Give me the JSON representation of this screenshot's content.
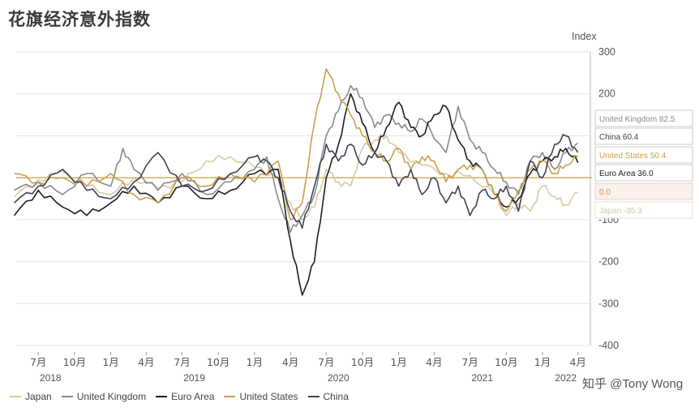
{
  "title": "花旗经济意外指数",
  "watermark": "知乎 @Tony Wong",
  "chart_data": {
    "type": "line",
    "title": "花旗经济意外指数",
    "ylabel": "Index",
    "ylim": [
      -400,
      300
    ],
    "yticks": [
      300,
      200,
      100,
      0,
      -100,
      -200,
      -300,
      -400
    ],
    "grid": true,
    "legend_position": "bottom-left",
    "x_labels": [
      "7月",
      "10月",
      "1月",
      "4月",
      "7月",
      "10月",
      "1月",
      "4月",
      "7月",
      "10月",
      "1月",
      "4月",
      "7月",
      "10月",
      "1月",
      "4月"
    ],
    "x_label_dates": [
      "2018-07",
      "2018-10",
      "2019-01",
      "2019-04",
      "2019-07",
      "2019-10",
      "2020-01",
      "2020-04",
      "2020-07",
      "2020-10",
      "2021-01",
      "2021-04",
      "2021-07",
      "2021-10",
      "2022-01",
      "2022-04"
    ],
    "year_labels": [
      {
        "date": "2018-08",
        "label": "2018"
      },
      {
        "date": "2019-08",
        "label": "2019"
      },
      {
        "date": "2020-08",
        "label": "2020"
      },
      {
        "date": "2021-08",
        "label": "2021"
      },
      {
        "date": "2022-03",
        "label": "2022"
      }
    ],
    "x_range": [
      "2018-05-20",
      "2022-04-30"
    ],
    "series": [
      {
        "name": "Japan",
        "color": "#d8c9a8",
        "end_value": -35.3,
        "end_label": "Japan -35.3",
        "points": [
          [
            "2018-05",
            -45
          ],
          [
            "2018-07",
            -5
          ],
          [
            "2018-09",
            15
          ],
          [
            "2018-11",
            -20
          ],
          [
            "2019-01",
            -40
          ],
          [
            "2019-03",
            0
          ],
          [
            "2019-05",
            -25
          ],
          [
            "2019-07",
            -10
          ],
          [
            "2019-09",
            40
          ],
          [
            "2019-11",
            50
          ],
          [
            "2020-01",
            25
          ],
          [
            "2020-03",
            0
          ],
          [
            "2020-04",
            -60
          ],
          [
            "2020-05",
            -100
          ],
          [
            "2020-06",
            -70
          ],
          [
            "2020-07",
            20
          ],
          [
            "2020-08",
            -10
          ],
          [
            "2020-09",
            -20
          ],
          [
            "2020-10",
            70
          ],
          [
            "2020-11",
            90
          ],
          [
            "2020-12",
            100
          ],
          [
            "2021-01",
            60
          ],
          [
            "2021-03",
            30
          ],
          [
            "2021-05",
            10
          ],
          [
            "2021-07",
            5
          ],
          [
            "2021-09",
            -40
          ],
          [
            "2021-10",
            -90
          ],
          [
            "2021-11",
            -60
          ],
          [
            "2021-12",
            -80
          ],
          [
            "2022-01",
            -20
          ],
          [
            "2022-02",
            -45
          ],
          [
            "2022-03",
            -65
          ],
          [
            "2022-04",
            -35.3
          ]
        ]
      },
      {
        "name": "United Kingdom",
        "color": "#8a8a8a",
        "end_value": 82.5,
        "end_label": "United Kingdom 82.5",
        "points": [
          [
            "2018-05",
            -30
          ],
          [
            "2018-07",
            -10
          ],
          [
            "2018-09",
            -40
          ],
          [
            "2018-11",
            10
          ],
          [
            "2019-01",
            -20
          ],
          [
            "2019-02",
            70
          ],
          [
            "2019-03",
            20
          ],
          [
            "2019-05",
            -30
          ],
          [
            "2019-07",
            10
          ],
          [
            "2019-09",
            -40
          ],
          [
            "2019-11",
            -10
          ],
          [
            "2020-01",
            20
          ],
          [
            "2020-02",
            50
          ],
          [
            "2020-03",
            -50
          ],
          [
            "2020-04",
            -130
          ],
          [
            "2020-05",
            -90
          ],
          [
            "2020-06",
            -40
          ],
          [
            "2020-07",
            100
          ],
          [
            "2020-08",
            160
          ],
          [
            "2020-09",
            220
          ],
          [
            "2020-10",
            190
          ],
          [
            "2020-11",
            120
          ],
          [
            "2020-12",
            150
          ],
          [
            "2021-01",
            130
          ],
          [
            "2021-02",
            110
          ],
          [
            "2021-03",
            140
          ],
          [
            "2021-05",
            60
          ],
          [
            "2021-06",
            170
          ],
          [
            "2021-07",
            90
          ],
          [
            "2021-08",
            60
          ],
          [
            "2021-09",
            20
          ],
          [
            "2021-10",
            -10
          ],
          [
            "2021-11",
            -40
          ],
          [
            "2021-12",
            40
          ],
          [
            "2022-01",
            60
          ],
          [
            "2022-02",
            20
          ],
          [
            "2022-03",
            60
          ],
          [
            "2022-04",
            82.5
          ]
        ]
      },
      {
        "name": "Euro Area",
        "color": "#1e1e1e",
        "end_value": 36.0,
        "end_label": "Euro Area 36.0",
        "points": [
          [
            "2018-05",
            -90
          ],
          [
            "2018-07",
            -30
          ],
          [
            "2018-09",
            -70
          ],
          [
            "2018-11",
            -90
          ],
          [
            "2019-01",
            -60
          ],
          [
            "2019-03",
            -20
          ],
          [
            "2019-05",
            -60
          ],
          [
            "2019-07",
            -20
          ],
          [
            "2019-09",
            -50
          ],
          [
            "2019-11",
            -30
          ],
          [
            "2020-01",
            10
          ],
          [
            "2020-03",
            20
          ],
          [
            "2020-04",
            -150
          ],
          [
            "2020-05",
            -280
          ],
          [
            "2020-06",
            -200
          ],
          [
            "2020-07",
            0
          ],
          [
            "2020-08",
            80
          ],
          [
            "2020-09",
            200
          ],
          [
            "2020-10",
            130
          ],
          [
            "2020-11",
            60
          ],
          [
            "2020-12",
            120
          ],
          [
            "2021-01",
            180
          ],
          [
            "2021-02",
            120
          ],
          [
            "2021-03",
            100
          ],
          [
            "2021-04",
            150
          ],
          [
            "2021-05",
            170
          ],
          [
            "2021-06",
            90
          ],
          [
            "2021-07",
            40
          ],
          [
            "2021-08",
            20
          ],
          [
            "2021-09",
            -40
          ],
          [
            "2021-10",
            -70
          ],
          [
            "2021-11",
            -50
          ],
          [
            "2021-12",
            10
          ],
          [
            "2022-01",
            40
          ],
          [
            "2022-02",
            50
          ],
          [
            "2022-03",
            70
          ],
          [
            "2022-04",
            36.0
          ]
        ]
      },
      {
        "name": "United States",
        "color": "#c9a04e",
        "end_value": 50.4,
        "end_label": "United States 50.4",
        "points": [
          [
            "2018-05",
            10
          ],
          [
            "2018-07",
            -10
          ],
          [
            "2018-09",
            0
          ],
          [
            "2018-11",
            -20
          ],
          [
            "2019-01",
            10
          ],
          [
            "2019-03",
            -40
          ],
          [
            "2019-05",
            -60
          ],
          [
            "2019-07",
            0
          ],
          [
            "2019-09",
            -20
          ],
          [
            "2019-11",
            10
          ],
          [
            "2020-01",
            -10
          ],
          [
            "2020-03",
            40
          ],
          [
            "2020-04",
            -100
          ],
          [
            "2020-05",
            -60
          ],
          [
            "2020-06",
            130
          ],
          [
            "2020-07",
            260
          ],
          [
            "2020-08",
            200
          ],
          [
            "2020-09",
            150
          ],
          [
            "2020-10",
            100
          ],
          [
            "2020-11",
            60
          ],
          [
            "2020-12",
            40
          ],
          [
            "2021-01",
            70
          ],
          [
            "2021-02",
            20
          ],
          [
            "2021-03",
            50
          ],
          [
            "2021-04",
            40
          ],
          [
            "2021-05",
            -10
          ],
          [
            "2021-06",
            20
          ],
          [
            "2021-07",
            30
          ],
          [
            "2021-08",
            20
          ],
          [
            "2021-09",
            -40
          ],
          [
            "2021-10",
            -80
          ],
          [
            "2021-11",
            -30
          ],
          [
            "2021-12",
            20
          ],
          [
            "2022-01",
            40
          ],
          [
            "2022-02",
            10
          ],
          [
            "2022-03",
            30
          ],
          [
            "2022-04",
            50.4
          ]
        ]
      },
      {
        "name": "China",
        "color": "#3c4354",
        "end_value": 60.4,
        "end_label": "China 60.4",
        "points": [
          [
            "2018-05",
            -60
          ],
          [
            "2018-07",
            -20
          ],
          [
            "2018-09",
            20
          ],
          [
            "2018-11",
            -30
          ],
          [
            "2019-01",
            -50
          ],
          [
            "2019-03",
            -10
          ],
          [
            "2019-05",
            60
          ],
          [
            "2019-07",
            -20
          ],
          [
            "2019-09",
            -30
          ],
          [
            "2019-11",
            10
          ],
          [
            "2020-01",
            50
          ],
          [
            "2020-02",
            40
          ],
          [
            "2020-03",
            0
          ],
          [
            "2020-04",
            -80
          ],
          [
            "2020-05",
            -120
          ],
          [
            "2020-06",
            -20
          ],
          [
            "2020-07",
            80
          ],
          [
            "2020-08",
            40
          ],
          [
            "2020-09",
            80
          ],
          [
            "2020-10",
            30
          ],
          [
            "2020-11",
            60
          ],
          [
            "2020-12",
            40
          ],
          [
            "2021-01",
            -20
          ],
          [
            "2021-02",
            20
          ],
          [
            "2021-03",
            -40
          ],
          [
            "2021-04",
            0
          ],
          [
            "2021-05",
            -60
          ],
          [
            "2021-06",
            -20
          ],
          [
            "2021-07",
            -90
          ],
          [
            "2021-08",
            -30
          ],
          [
            "2021-09",
            -50
          ],
          [
            "2021-10",
            -20
          ],
          [
            "2021-11",
            -80
          ],
          [
            "2021-12",
            40
          ],
          [
            "2022-01",
            0
          ],
          [
            "2022-02",
            80
          ],
          [
            "2022-03",
            100
          ],
          [
            "2022-04",
            60.4
          ]
        ]
      }
    ],
    "zero_line": {
      "value": 0.0,
      "label": "0.0",
      "color": "#c9a04e"
    },
    "end_label_order": [
      "United Kingdom",
      "China",
      "United States",
      "Euro Area",
      "zero",
      "Japan"
    ]
  }
}
